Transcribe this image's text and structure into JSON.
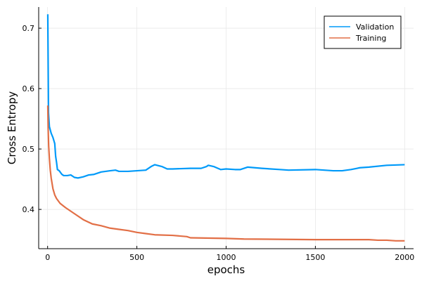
{
  "chart_data": {
    "type": "line",
    "title": "",
    "xlabel": "epochs",
    "ylabel": "Cross Entropy",
    "xlim": [
      -50,
      2050
    ],
    "ylim": [
      0.335,
      0.735
    ],
    "x_ticks": [
      0,
      500,
      1000,
      1500,
      2000
    ],
    "x_tick_labels": [
      "0",
      "500",
      "1000",
      "1500",
      "2000"
    ],
    "y_ticks": [
      0.4,
      0.5,
      0.6,
      0.7
    ],
    "y_tick_labels": [
      "0.4",
      "0.5",
      "0.6",
      "0.7"
    ],
    "grid": true,
    "legend_position": "top-right",
    "series": [
      {
        "name": "Validation",
        "color": "#009af9",
        "points": [
          [
            1,
            0.723
          ],
          [
            5,
            0.56
          ],
          [
            10,
            0.537
          ],
          [
            20,
            0.526
          ],
          [
            30,
            0.519
          ],
          [
            35,
            0.514
          ],
          [
            40,
            0.509
          ],
          [
            45,
            0.488
          ],
          [
            50,
            0.478
          ],
          [
            55,
            0.466
          ],
          [
            65,
            0.464
          ],
          [
            80,
            0.458
          ],
          [
            90,
            0.456
          ],
          [
            110,
            0.456
          ],
          [
            130,
            0.457
          ],
          [
            150,
            0.453
          ],
          [
            170,
            0.452
          ],
          [
            200,
            0.454
          ],
          [
            230,
            0.457
          ],
          [
            260,
            0.458
          ],
          [
            300,
            0.462
          ],
          [
            350,
            0.464
          ],
          [
            380,
            0.465
          ],
          [
            400,
            0.463
          ],
          [
            450,
            0.463
          ],
          [
            500,
            0.464
          ],
          [
            550,
            0.465
          ],
          [
            580,
            0.471
          ],
          [
            600,
            0.474
          ],
          [
            640,
            0.471
          ],
          [
            670,
            0.467
          ],
          [
            700,
            0.467
          ],
          [
            800,
            0.468
          ],
          [
            860,
            0.468
          ],
          [
            890,
            0.471
          ],
          [
            900,
            0.473
          ],
          [
            930,
            0.471
          ],
          [
            970,
            0.466
          ],
          [
            1000,
            0.467
          ],
          [
            1050,
            0.466
          ],
          [
            1080,
            0.466
          ],
          [
            1120,
            0.47
          ],
          [
            1200,
            0.468
          ],
          [
            1300,
            0.466
          ],
          [
            1350,
            0.465
          ],
          [
            1500,
            0.466
          ],
          [
            1600,
            0.464
          ],
          [
            1650,
            0.464
          ],
          [
            1700,
            0.466
          ],
          [
            1750,
            0.469
          ],
          [
            1800,
            0.47
          ],
          [
            1900,
            0.473
          ],
          [
            2000,
            0.474
          ]
        ]
      },
      {
        "name": "Training",
        "color": "#e26f46",
        "points": [
          [
            1,
            0.572
          ],
          [
            3,
            0.535
          ],
          [
            6,
            0.505
          ],
          [
            10,
            0.484
          ],
          [
            15,
            0.465
          ],
          [
            20,
            0.452
          ],
          [
            25,
            0.443
          ],
          [
            30,
            0.434
          ],
          [
            40,
            0.424
          ],
          [
            50,
            0.418
          ],
          [
            70,
            0.41
          ],
          [
            100,
            0.403
          ],
          [
            150,
            0.393
          ],
          [
            200,
            0.383
          ],
          [
            250,
            0.376
          ],
          [
            300,
            0.373
          ],
          [
            350,
            0.369
          ],
          [
            400,
            0.367
          ],
          [
            450,
            0.365
          ],
          [
            500,
            0.362
          ],
          [
            550,
            0.36
          ],
          [
            600,
            0.358
          ],
          [
            700,
            0.357
          ],
          [
            780,
            0.355
          ],
          [
            800,
            0.353
          ],
          [
            1000,
            0.352
          ],
          [
            1100,
            0.351
          ],
          [
            1500,
            0.35
          ],
          [
            1800,
            0.35
          ],
          [
            1850,
            0.349
          ],
          [
            1900,
            0.349
          ],
          [
            1950,
            0.348
          ],
          [
            2000,
            0.348
          ]
        ]
      }
    ]
  }
}
